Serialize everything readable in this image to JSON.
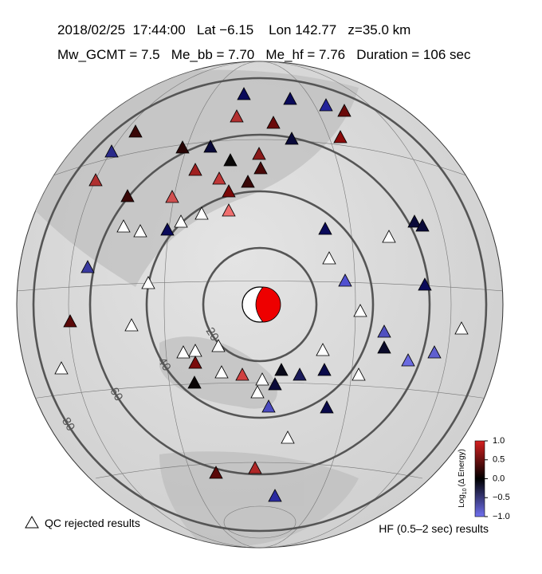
{
  "header": {
    "line1": "2018/02/25  17:44:00   Lat −6.15    Lon 142.77   z=35.0 km",
    "line2": "Mw_GCMT = 7.5   Me_bb = 7.70   Me_hf = 7.76   Duration = 106 sec"
  },
  "distance_rings": [
    20,
    40,
    60,
    80
  ],
  "colorbar": {
    "label_prefix": "Log",
    "label_sub": "10",
    "label_suffix": "(Δ Energy)",
    "ticks": [
      {
        "value": 1,
        "label": "1.0"
      },
      {
        "value": 0.5,
        "label": "0.5"
      },
      {
        "value": 0,
        "label": "0.0"
      },
      {
        "value": -0.5,
        "label": "−0.5"
      },
      {
        "value": -1,
        "label": "−1.0"
      }
    ]
  },
  "legend": {
    "rejected": "QC rejected results",
    "method": "HF (0.5–2 sec) results"
  }
}
